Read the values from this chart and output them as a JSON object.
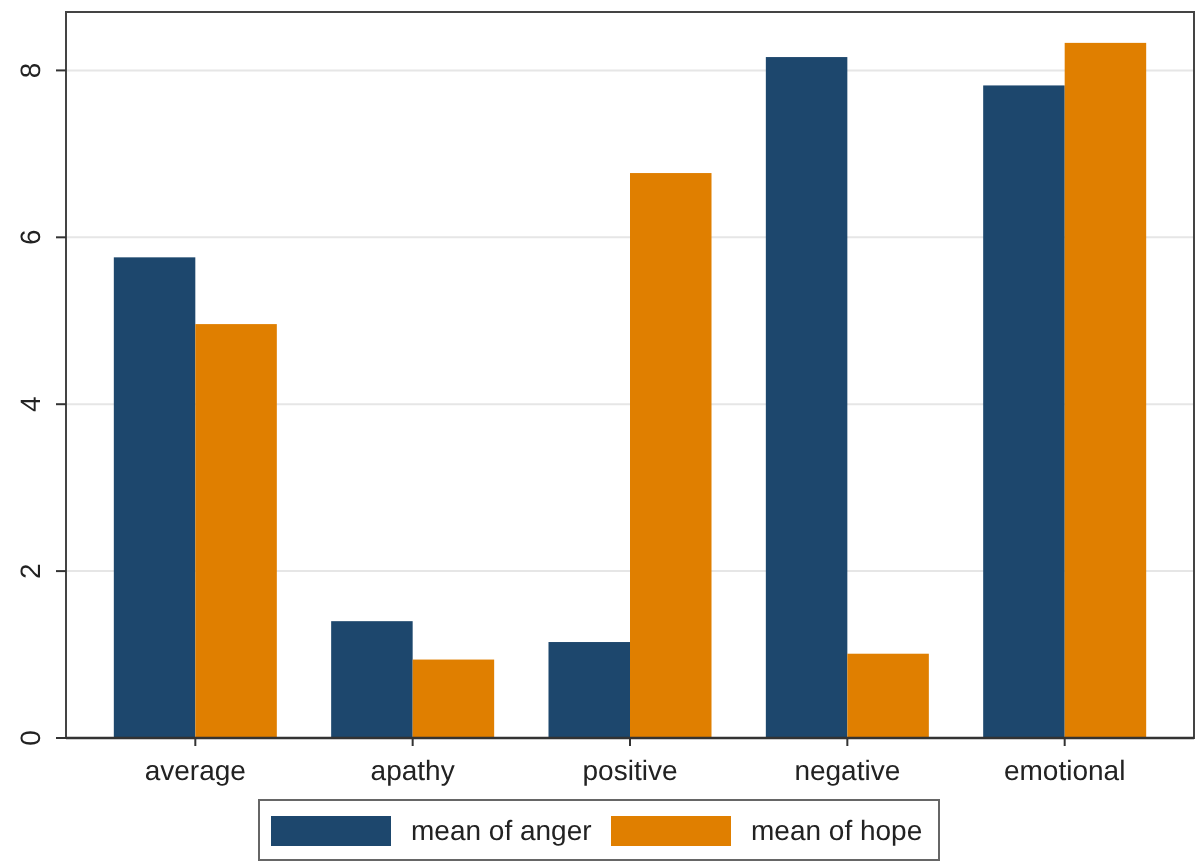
{
  "chart_data": {
    "type": "bar",
    "categories": [
      "average",
      "apathy",
      "positive",
      "negative",
      "emotional"
    ],
    "series": [
      {
        "name": "mean of anger",
        "color": "#1d476d",
        "values": [
          5.76,
          1.4,
          1.15,
          8.16,
          7.82
        ]
      },
      {
        "name": "mean of hope",
        "color": "#e07f00",
        "values": [
          4.96,
          0.94,
          6.77,
          1.01,
          8.33
        ]
      }
    ],
    "ylim": [
      0,
      8.7
    ],
    "yticks": [
      0,
      2,
      4,
      6,
      8
    ],
    "grid": "y",
    "legend": "bottom"
  }
}
